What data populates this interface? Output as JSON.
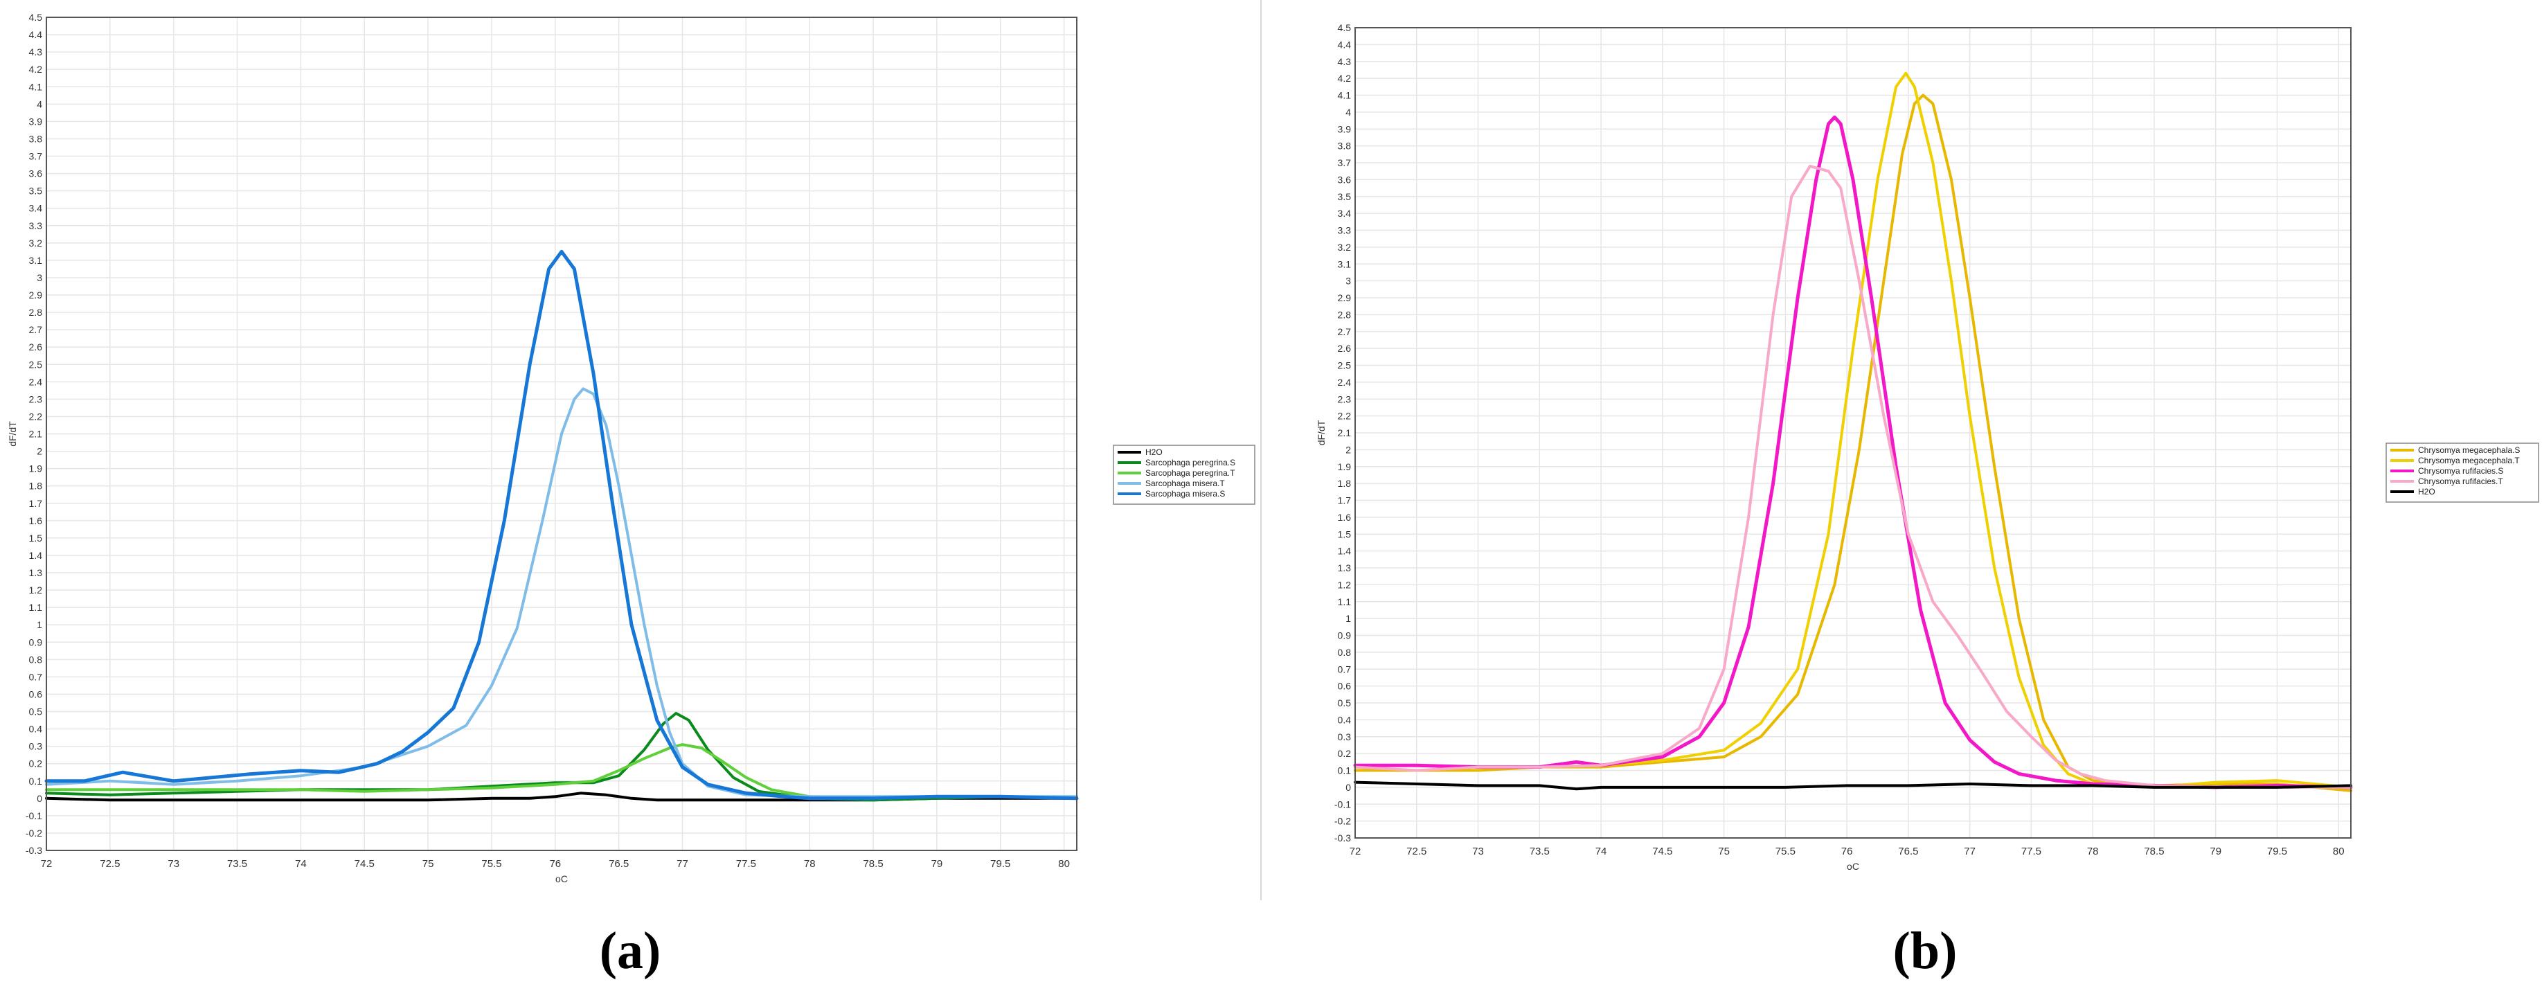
{
  "captions": {
    "a": "(a)",
    "b": "(b)"
  },
  "chart_data": [
    {
      "type": "line",
      "panel": "a",
      "xlabel": "oC",
      "ylabel": "dF/dT",
      "xlim": [
        72,
        80.1
      ],
      "ylim": [
        -0.3,
        4.5
      ],
      "xticks": [
        "72",
        "72.5",
        "73",
        "73.5",
        "74",
        "74.5",
        "75",
        "75.5",
        "76",
        "76.5",
        "77",
        "77.5",
        "78",
        "78.5",
        "79",
        "79.5",
        "80"
      ],
      "yticks": [
        "-0.3",
        "-0.2",
        "-0.1",
        "0",
        "0.1",
        "0.2",
        "0.3",
        "0.4",
        "0.5",
        "0.6",
        "0.7",
        "0.8",
        "0.9",
        "1",
        "1.1",
        "1.2",
        "1.3",
        "1.4",
        "1.5",
        "1.6",
        "1.7",
        "1.8",
        "1.9",
        "2",
        "2.1",
        "2.2",
        "2.3",
        "2.4",
        "2.5",
        "2.6",
        "2.7",
        "2.8",
        "2.9",
        "3",
        "3.1",
        "3.2",
        "3.3",
        "3.4",
        "3.5",
        "3.6",
        "3.7",
        "3.8",
        "3.9",
        "4",
        "4.1",
        "4.2",
        "4.3",
        "4.4",
        "4.5"
      ],
      "grid": true,
      "legend_position": "right",
      "series": [
        {
          "name": "H2O",
          "color": "#000000",
          "width": 4,
          "x": [
            72,
            72.5,
            73,
            73.5,
            74,
            74.5,
            75,
            75.5,
            75.8,
            76,
            76.2,
            76.4,
            76.6,
            76.8,
            77,
            77.5,
            78,
            78.5,
            79,
            79.5,
            80.1
          ],
          "y": [
            0,
            -0.01,
            -0.01,
            -0.01,
            -0.01,
            -0.01,
            -0.01,
            0,
            0,
            0.01,
            0.03,
            0.02,
            0,
            -0.01,
            -0.01,
            -0.01,
            -0.01,
            -0.01,
            0,
            0,
            0
          ]
        },
        {
          "name": "Sarcophaga peregrina.S",
          "color": "#0a8a1c",
          "width": 4,
          "x": [
            72,
            72.5,
            73,
            73.5,
            74,
            74.5,
            75,
            75.5,
            76,
            76.3,
            76.5,
            76.7,
            76.85,
            76.95,
            77.05,
            77.2,
            77.4,
            77.6,
            78,
            78.5,
            79,
            79.5,
            80.1
          ],
          "y": [
            0.03,
            0.02,
            0.03,
            0.04,
            0.05,
            0.05,
            0.05,
            0.07,
            0.09,
            0.09,
            0.13,
            0.28,
            0.43,
            0.49,
            0.45,
            0.28,
            0.12,
            0.04,
            0,
            -0.01,
            0,
            0.01,
            0
          ]
        },
        {
          "name": "Sarcophaga peregrina.T",
          "color": "#5fcf3a",
          "width": 4,
          "x": [
            72,
            72.5,
            73,
            73.5,
            74,
            74.5,
            75,
            75.5,
            76,
            76.3,
            76.5,
            76.7,
            76.9,
            77,
            77.15,
            77.3,
            77.5,
            77.7,
            78,
            78.5,
            79,
            79.5,
            80.1
          ],
          "y": [
            0.05,
            0.05,
            0.05,
            0.05,
            0.05,
            0.04,
            0.05,
            0.06,
            0.08,
            0.1,
            0.16,
            0.23,
            0.29,
            0.31,
            0.29,
            0.22,
            0.12,
            0.05,
            0.01,
            0,
            0.01,
            0.01,
            0
          ]
        },
        {
          "name": "Sarcophaga misera.T",
          "color": "#7fbde8",
          "width": 4,
          "x": [
            72,
            72.5,
            73,
            73.5,
            74,
            74.5,
            75,
            75.3,
            75.5,
            75.7,
            75.9,
            76.05,
            76.15,
            76.22,
            76.3,
            76.4,
            76.5,
            76.6,
            76.7,
            76.8,
            76.9,
            77,
            77.2,
            77.5,
            78,
            78.5,
            79,
            79.5,
            80.1
          ],
          "y": [
            0.08,
            0.1,
            0.08,
            0.1,
            0.13,
            0.18,
            0.3,
            0.42,
            0.65,
            0.98,
            1.6,
            2.1,
            2.3,
            2.36,
            2.33,
            2.15,
            1.8,
            1.4,
            1.0,
            0.65,
            0.38,
            0.2,
            0.07,
            0.02,
            0.01,
            0.01,
            0.01,
            0.01,
            0.01
          ]
        },
        {
          "name": "Sarcophaga misera.S",
          "color": "#1677d6",
          "width": 5,
          "x": [
            72,
            72.3,
            72.6,
            73,
            73.3,
            73.6,
            74,
            74.3,
            74.6,
            74.8,
            75,
            75.2,
            75.4,
            75.6,
            75.8,
            75.95,
            76.05,
            76.15,
            76.3,
            76.45,
            76.6,
            76.8,
            77,
            77.2,
            77.5,
            77.8,
            78,
            78.5,
            79,
            79.5,
            80.1
          ],
          "y": [
            0.1,
            0.1,
            0.15,
            0.1,
            0.12,
            0.14,
            0.16,
            0.15,
            0.2,
            0.27,
            0.38,
            0.52,
            0.9,
            1.6,
            2.5,
            3.05,
            3.15,
            3.05,
            2.45,
            1.7,
            1.0,
            0.45,
            0.18,
            0.08,
            0.03,
            0.01,
            0,
            0,
            0.01,
            0.01,
            0
          ]
        }
      ]
    },
    {
      "type": "line",
      "panel": "b",
      "xlabel": "oC",
      "ylabel": "dF/dT",
      "xlim": [
        72,
        80.1
      ],
      "ylim": [
        -0.3,
        4.5
      ],
      "xticks": [
        "72",
        "72.5",
        "73",
        "73.5",
        "74",
        "74.5",
        "75",
        "75.5",
        "76",
        "76.5",
        "77",
        "77.5",
        "78",
        "78.5",
        "79",
        "79.5",
        "80"
      ],
      "yticks": [
        "-0.3",
        "-0.2",
        "-0.1",
        "0",
        "0.1",
        "0.2",
        "0.3",
        "0.4",
        "0.5",
        "0.6",
        "0.7",
        "0.8",
        "0.9",
        "1",
        "1.1",
        "1.2",
        "1.3",
        "1.4",
        "1.5",
        "1.6",
        "1.7",
        "1.8",
        "1.9",
        "2",
        "2.1",
        "2.2",
        "2.3",
        "2.4",
        "2.5",
        "2.6",
        "2.7",
        "2.8",
        "2.9",
        "3",
        "3.1",
        "3.2",
        "3.3",
        "3.4",
        "3.5",
        "3.6",
        "3.7",
        "3.8",
        "3.9",
        "4",
        "4.1",
        "4.2",
        "4.3",
        "4.4",
        "4.5"
      ],
      "grid": true,
      "legend_position": "right",
      "series": [
        {
          "name": "Chrysomya megacephala.S",
          "color": "#e6b800",
          "width": 4,
          "x": [
            72,
            72.5,
            73,
            73.5,
            74,
            74.5,
            75,
            75.3,
            75.6,
            75.9,
            76.1,
            76.3,
            76.45,
            76.55,
            76.62,
            76.7,
            76.85,
            77,
            77.2,
            77.4,
            77.6,
            77.8,
            78,
            78.5,
            79,
            79.5,
            80.1
          ],
          "y": [
            0.1,
            0.1,
            0.1,
            0.12,
            0.12,
            0.15,
            0.18,
            0.3,
            0.55,
            1.2,
            2.0,
            3.0,
            3.75,
            4.05,
            4.1,
            4.05,
            3.6,
            2.9,
            1.9,
            1.0,
            0.4,
            0.12,
            0.04,
            0.01,
            0.02,
            0.02,
            -0.02
          ]
        },
        {
          "name": "Chrysomya megacephala.T",
          "color": "#f0d000",
          "width": 4,
          "x": [
            72,
            72.5,
            73,
            73.5,
            74,
            74.5,
            75,
            75.3,
            75.6,
            75.85,
            76.05,
            76.25,
            76.4,
            76.48,
            76.55,
            76.7,
            76.85,
            77,
            77.2,
            77.4,
            77.6,
            77.8,
            78,
            78.5,
            79,
            79.5,
            80.1
          ],
          "y": [
            0.12,
            0.1,
            0.12,
            0.12,
            0.13,
            0.16,
            0.22,
            0.38,
            0.7,
            1.5,
            2.6,
            3.6,
            4.15,
            4.23,
            4.15,
            3.7,
            3.0,
            2.2,
            1.3,
            0.65,
            0.25,
            0.08,
            0.02,
            0,
            0.03,
            0.04,
            0
          ]
        },
        {
          "name": "Chrysomya rufifacies.S",
          "color": "#f218c8",
          "width": 5,
          "x": [
            72,
            72.5,
            73,
            73.5,
            73.8,
            74,
            74.5,
            74.8,
            75,
            75.2,
            75.4,
            75.6,
            75.75,
            75.85,
            75.9,
            75.95,
            76.05,
            76.2,
            76.4,
            76.6,
            76.8,
            77,
            77.2,
            77.4,
            77.7,
            78,
            78.5,
            79,
            79.5,
            80.1
          ],
          "y": [
            0.13,
            0.13,
            0.12,
            0.12,
            0.15,
            0.13,
            0.18,
            0.3,
            0.5,
            0.95,
            1.8,
            2.9,
            3.6,
            3.93,
            3.97,
            3.93,
            3.6,
            2.9,
            1.9,
            1.05,
            0.5,
            0.28,
            0.15,
            0.08,
            0.04,
            0.02,
            0.01,
            0,
            0.01,
            0
          ]
        },
        {
          "name": "Chrysomya rufifacies.T",
          "color": "#f8a8c8",
          "width": 4,
          "x": [
            72,
            72.5,
            73,
            73.5,
            74,
            74.5,
            74.8,
            75,
            75.2,
            75.4,
            75.55,
            75.7,
            75.85,
            75.95,
            76.1,
            76.3,
            76.5,
            76.7,
            76.9,
            77.1,
            77.3,
            77.5,
            77.7,
            77.9,
            78.1,
            78.5,
            79,
            79.5,
            80.1
          ],
          "y": [
            0.12,
            0.1,
            0.12,
            0.12,
            0.13,
            0.2,
            0.35,
            0.7,
            1.6,
            2.8,
            3.5,
            3.68,
            3.65,
            3.55,
            3.0,
            2.2,
            1.5,
            1.1,
            0.9,
            0.68,
            0.45,
            0.3,
            0.16,
            0.08,
            0.04,
            0.01,
            0,
            0,
            0
          ]
        },
        {
          "name": "H2O",
          "color": "#000000",
          "width": 4,
          "x": [
            72,
            72.5,
            73,
            73.5,
            73.8,
            74,
            74.5,
            75,
            75.5,
            76,
            76.5,
            77,
            77.5,
            78,
            78.5,
            79,
            79.5,
            80.1
          ],
          "y": [
            0.03,
            0.02,
            0.01,
            0.01,
            -0.01,
            0,
            0,
            0,
            0,
            0.01,
            0.01,
            0.02,
            0.01,
            0.01,
            0,
            0,
            0,
            0.01
          ]
        }
      ]
    }
  ]
}
